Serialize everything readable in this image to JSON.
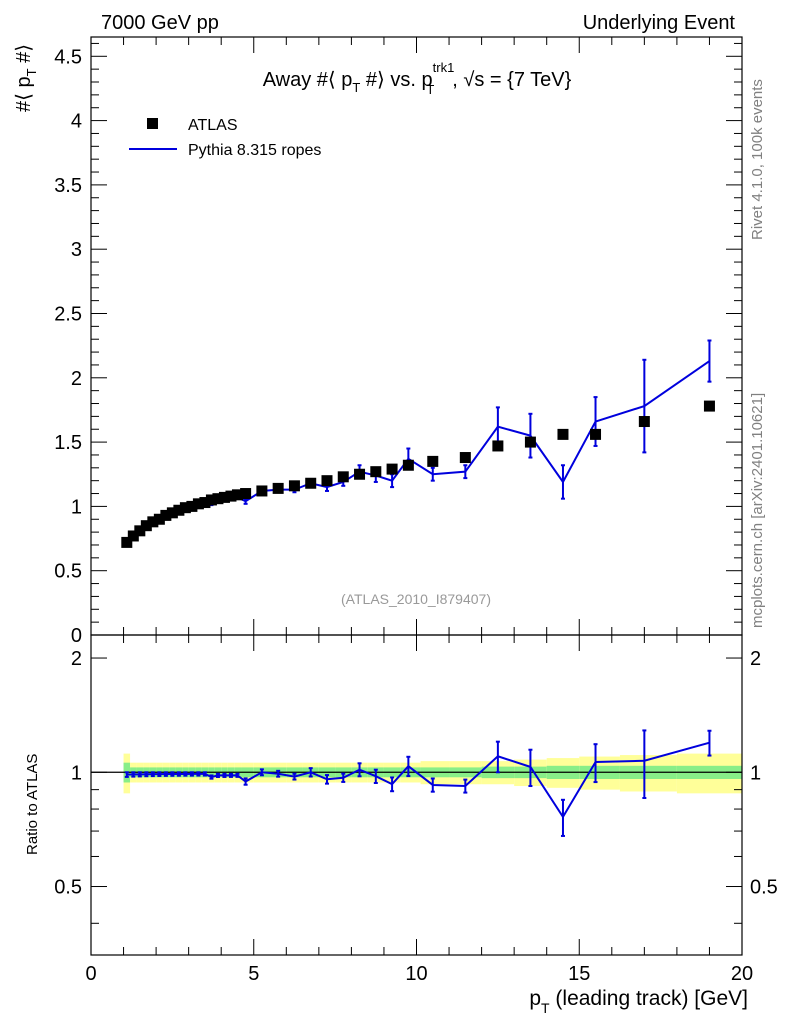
{
  "header": {
    "left": "7000 GeV pp",
    "right": "Underlying Event"
  },
  "side": {
    "rivet": "Rivet 4.1.0,  100k events",
    "mcplots": "mcplots.cern.ch [arXiv:2401.10621]"
  },
  "colors": {
    "mc": "#0000dd",
    "data": "#000000",
    "band_inner": "#88ee88",
    "band_outer": "#ffff99"
  },
  "chart_data": {
    "type": "scatter",
    "title": "Away #⟨ p_T #⟩ vs. p_T^trk1, √s = {7 TeV}",
    "title_parts": {
      "prefix": "Away #⟨ p",
      "sub1": "T",
      "mid": " #⟩ vs. p",
      "sup": "trk1",
      "sub2": "T",
      "suffix": ", √s = {7 TeV}"
    },
    "ylabel_parts": {
      "a": "#⟨ p",
      "sub": "T",
      "b": " #⟩"
    },
    "xlabel_parts": {
      "a": "p",
      "sub": "T",
      "b": " (leading track) [GeV]"
    },
    "ratio_ylabel": "Ratio to ATLAS",
    "analysis_tag": "(ATLAS_2010_I879407)",
    "xlim": [
      0,
      20
    ],
    "ylim": [
      0,
      4.65
    ],
    "ratio_ylim": [
      0.33,
      2.3
    ],
    "xticks": [
      "0",
      "5",
      "10",
      "15",
      "20"
    ],
    "yticks": [
      "0",
      "0.5",
      "1",
      "1.5",
      "2",
      "2.5",
      "3",
      "3.5",
      "4",
      "4.5"
    ],
    "ratio_yticks": [
      "0.5",
      "1",
      "2"
    ],
    "legend": {
      "data_label": "ATLAS",
      "mc_label": "Pythia 8.315 ropes"
    },
    "data": {
      "name": "ATLAS",
      "x": [
        1.1,
        1.3,
        1.5,
        1.7,
        1.9,
        2.1,
        2.3,
        2.5,
        2.7,
        2.9,
        3.1,
        3.3,
        3.5,
        3.7,
        3.9,
        4.1,
        4.3,
        4.5,
        4.75,
        5.25,
        5.75,
        6.25,
        6.75,
        7.25,
        7.75,
        8.25,
        8.75,
        9.25,
        9.75,
        10.5,
        11.5,
        12.5,
        13.5,
        14.5,
        15.5,
        17.0,
        19.0
      ],
      "y": [
        0.72,
        0.77,
        0.81,
        0.85,
        0.88,
        0.9,
        0.93,
        0.95,
        0.97,
        0.99,
        1.0,
        1.02,
        1.03,
        1.05,
        1.06,
        1.07,
        1.08,
        1.09,
        1.1,
        1.12,
        1.14,
        1.16,
        1.18,
        1.2,
        1.23,
        1.25,
        1.27,
        1.29,
        1.32,
        1.35,
        1.38,
        1.47,
        1.5,
        1.56,
        1.56,
        1.66,
        1.78
      ],
      "band_inner_halfwidth": [
        0.06,
        0.03,
        0.03,
        0.03,
        0.03,
        0.03,
        0.03,
        0.03,
        0.03,
        0.03,
        0.03,
        0.03,
        0.03,
        0.03,
        0.03,
        0.03,
        0.03,
        0.03,
        0.03,
        0.03,
        0.03,
        0.03,
        0.03,
        0.03,
        0.03,
        0.03,
        0.03,
        0.03,
        0.03,
        0.03,
        0.03,
        0.035,
        0.035,
        0.04,
        0.04,
        0.04,
        0.04
      ],
      "band_outer_halfwidth": [
        0.12,
        0.06,
        0.06,
        0.06,
        0.06,
        0.06,
        0.06,
        0.06,
        0.06,
        0.06,
        0.06,
        0.06,
        0.06,
        0.06,
        0.06,
        0.06,
        0.06,
        0.06,
        0.06,
        0.06,
        0.06,
        0.06,
        0.06,
        0.06,
        0.06,
        0.06,
        0.06,
        0.06,
        0.06,
        0.07,
        0.07,
        0.07,
        0.08,
        0.09,
        0.1,
        0.11,
        0.12
      ]
    },
    "mc": {
      "name": "Pythia 8.315 ropes",
      "x": [
        1.1,
        1.3,
        1.5,
        1.7,
        1.9,
        2.1,
        2.3,
        2.5,
        2.7,
        2.9,
        3.1,
        3.3,
        3.5,
        3.7,
        3.9,
        4.1,
        4.3,
        4.5,
        4.75,
        5.25,
        5.75,
        6.25,
        6.75,
        7.25,
        7.75,
        8.25,
        8.75,
        9.25,
        9.75,
        10.5,
        11.5,
        12.5,
        13.5,
        14.5,
        15.5,
        17.0,
        19.0
      ],
      "y": [
        0.71,
        0.76,
        0.8,
        0.84,
        0.87,
        0.89,
        0.92,
        0.94,
        0.96,
        0.98,
        0.99,
        1.01,
        1.02,
        1.02,
        1.04,
        1.05,
        1.06,
        1.07,
        1.04,
        1.12,
        1.13,
        1.13,
        1.18,
        1.15,
        1.19,
        1.27,
        1.24,
        1.2,
        1.37,
        1.25,
        1.27,
        1.62,
        1.55,
        1.19,
        1.66,
        1.78,
        2.13
      ],
      "err": [
        0.01,
        0.01,
        0.01,
        0.01,
        0.01,
        0.01,
        0.01,
        0.01,
        0.01,
        0.01,
        0.01,
        0.01,
        0.01,
        0.01,
        0.01,
        0.01,
        0.01,
        0.01,
        0.02,
        0.02,
        0.02,
        0.02,
        0.03,
        0.03,
        0.03,
        0.05,
        0.05,
        0.05,
        0.08,
        0.05,
        0.05,
        0.15,
        0.17,
        0.13,
        0.19,
        0.36,
        0.16
      ]
    }
  }
}
